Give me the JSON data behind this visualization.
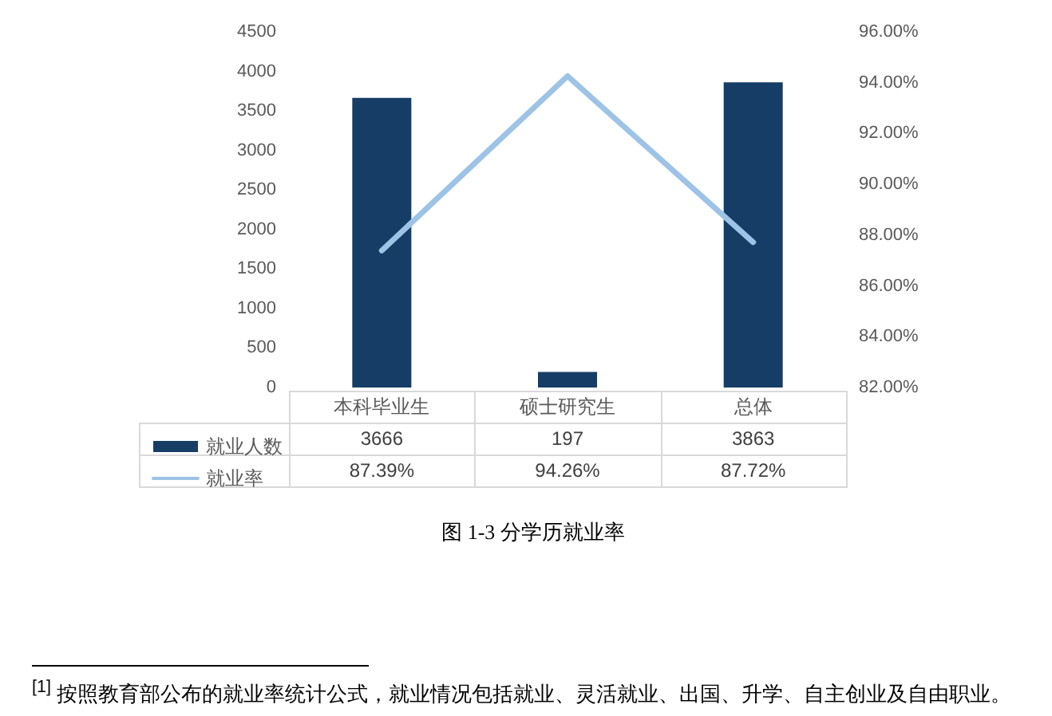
{
  "chart_data": {
    "type": "bar",
    "title": "图 1-3 分学历就业率",
    "categories": [
      "本科毕业生",
      "硕士研究生",
      "总体"
    ],
    "series": [
      {
        "name": "就业人数",
        "color": "#163d66",
        "values": [
          3666,
          197,
          3863
        ],
        "value_labels": [
          "3666",
          "197",
          "3863"
        ]
      },
      {
        "name": "就业率",
        "type": "line",
        "axis": "y2",
        "color": "#9dc3e6",
        "values": [
          87.39,
          94.26,
          87.72
        ],
        "value_labels": [
          "87.39%",
          "94.26%",
          "87.72%"
        ]
      }
    ],
    "ylim": [
      0,
      4500
    ],
    "yticks": [
      0,
      500,
      1000,
      1500,
      2000,
      2500,
      3000,
      3500,
      4000,
      4500
    ],
    "y2lim": [
      82,
      96
    ],
    "y2ticks": [
      {
        "value": 82,
        "label": "82.00%"
      },
      {
        "value": 84,
        "label": "84.00%"
      },
      {
        "value": 86,
        "label": "86.00%"
      },
      {
        "value": 88,
        "label": "88.00%"
      },
      {
        "value": 90,
        "label": "90.00%"
      },
      {
        "value": 92,
        "label": "92.00%"
      },
      {
        "value": 94,
        "label": "94.00%"
      },
      {
        "value": 96,
        "label": "96.00%"
      }
    ],
    "grid": false,
    "legend": "bottom",
    "marker": "none",
    "annotations": [
      "$^{[1]}$ 按照教育部公布的就业率统计公式，就业情况包括就业、灵活就业、出国、升学、自主创业及自由职业。"
    ]
  }
}
